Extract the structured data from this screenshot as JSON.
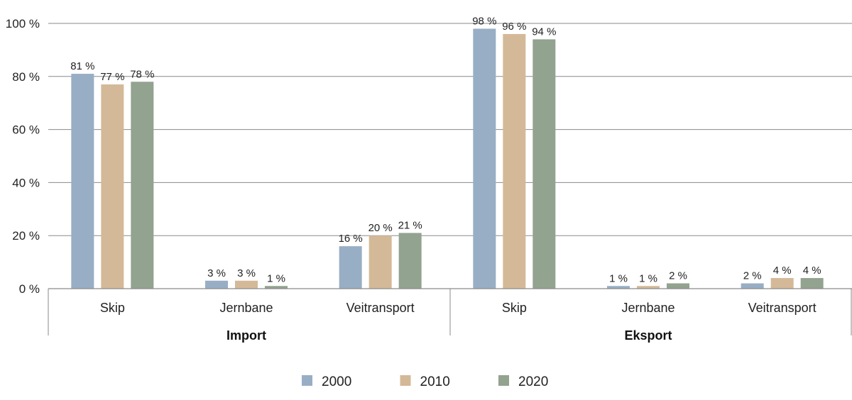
{
  "chart_data": {
    "type": "bar",
    "title": "",
    "xlabel": "",
    "ylabel": "",
    "ylim": [
      0,
      100
    ],
    "yticks": [
      0,
      20,
      40,
      60,
      80,
      100
    ],
    "ytick_labels": [
      "0 %",
      "20 %",
      "40 %",
      "60 %",
      "80 %",
      "100 %"
    ],
    "grid": true,
    "legend_position": "bottom",
    "groups": [
      {
        "label": "Import",
        "categories": [
          "Skip",
          "Jernbane",
          "Veitransport"
        ]
      },
      {
        "label": "Eksport",
        "categories": [
          "Skip",
          "Jernbane",
          "Veitransport"
        ]
      }
    ],
    "categories": [
      "Import / Skip",
      "Import / Jernbane",
      "Import / Veitransport",
      "Eksport / Skip",
      "Eksport / Jernbane",
      "Eksport / Veitransport"
    ],
    "series": [
      {
        "name": "2000",
        "color": "#98aec5",
        "values": [
          81,
          3,
          16,
          98,
          1,
          2
        ],
        "labels": [
          "81 %",
          "3 %",
          "16 %",
          "98 %",
          "1 %",
          "2 %"
        ]
      },
      {
        "name": "2010",
        "color": "#d4b998",
        "values": [
          77,
          3,
          20,
          96,
          1,
          4
        ],
        "labels": [
          "77 %",
          "3 %",
          "20 %",
          "96 %",
          "1 %",
          "4 %"
        ]
      },
      {
        "name": "2020",
        "color": "#92a38f",
        "values": [
          78,
          1,
          21,
          94,
          2,
          4
        ],
        "labels": [
          "78 %",
          "1 %",
          "21 %",
          "94 %",
          "2 %",
          "4 %"
        ]
      }
    ]
  }
}
